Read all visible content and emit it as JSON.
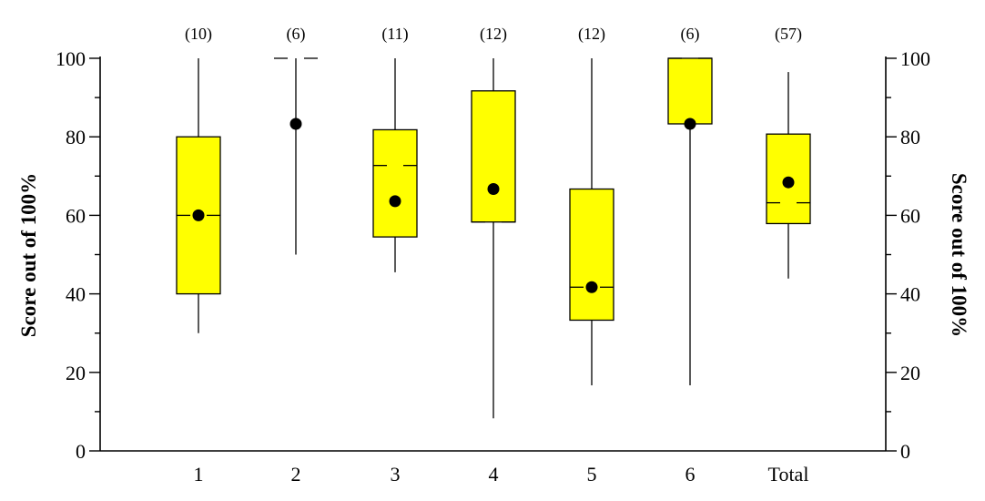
{
  "chart_data": {
    "type": "box",
    "ylabel_left": "Score out of 100%",
    "ylabel_right": "Score out of 100%",
    "ylim": [
      0,
      100
    ],
    "yticks_major": [
      0,
      20,
      40,
      60,
      80,
      100
    ],
    "yticks_major_labels": [
      "0",
      "20",
      "40",
      "60",
      "80",
      "100"
    ],
    "yticks_minor": [
      10,
      30,
      50,
      70,
      90
    ],
    "box_color": "#ffff00",
    "categories": [
      {
        "label": "1",
        "count": "(10)",
        "min": 30,
        "q1": 40,
        "median": 60,
        "q3": 80,
        "max": 100,
        "mean": 60
      },
      {
        "label": "2",
        "count": "(6)",
        "min": 50,
        "q1": 100,
        "median": 100,
        "q3": 100,
        "max": 100,
        "mean": 83.3
      },
      {
        "label": "3",
        "count": "(11)",
        "min": 45.5,
        "q1": 54.5,
        "median": 72.7,
        "q3": 81.8,
        "max": 100,
        "mean": 63.6
      },
      {
        "label": "4",
        "count": "(12)",
        "min": 8.3,
        "q1": 58.3,
        "median": 58.3,
        "q3": 91.7,
        "max": 100,
        "mean": 66.7
      },
      {
        "label": "5",
        "count": "(12)",
        "min": 16.7,
        "q1": 33.3,
        "median": 41.7,
        "q3": 66.7,
        "max": 100,
        "mean": 41.7
      },
      {
        "label": "6",
        "count": "(6)",
        "min": 16.7,
        "q1": 83.3,
        "median": 100,
        "q3": 100,
        "max": 100,
        "mean": 83.3
      },
      {
        "label": "Total",
        "count": "(57)",
        "min": 43.9,
        "q1": 57.9,
        "median": 63.2,
        "q3": 80.7,
        "max": 96.5,
        "mean": 68.4
      }
    ]
  }
}
